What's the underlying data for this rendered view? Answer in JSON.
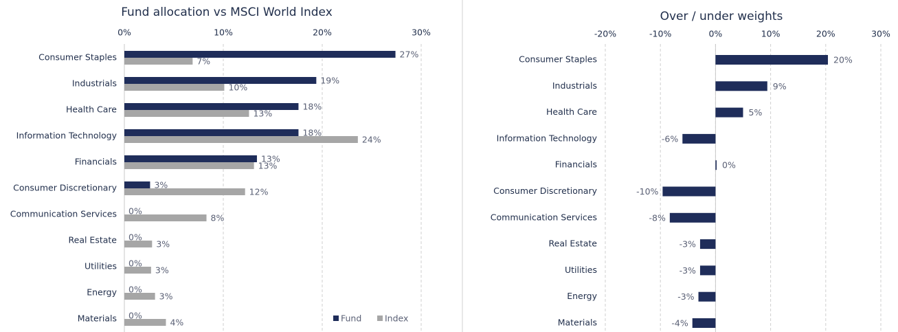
{
  "chart_data": [
    {
      "type": "bar",
      "orientation": "horizontal",
      "title": "Fund allocation vs MSCI World Index",
      "categories": [
        "Consumer Staples",
        "Industrials",
        "Health Care",
        "Information Technology",
        "Financials",
        "Consumer Discretionary",
        "Communication Services",
        "Real Estate",
        "Utilities",
        "Energy",
        "Materials"
      ],
      "series": [
        {
          "name": "Fund",
          "color": "#1f2d5a",
          "values": [
            27.4,
            19.4,
            17.6,
            17.6,
            13.4,
            2.6,
            0,
            0,
            0,
            0,
            0
          ],
          "value_labels": [
            "27%",
            "19%",
            "18%",
            "18%",
            "13%",
            "3%",
            "0%",
            "0%",
            "0%",
            "0%",
            "0%"
          ]
        },
        {
          "name": "Index",
          "color": "#a6a6a6",
          "values": [
            6.9,
            10.1,
            12.6,
            23.6,
            13.1,
            12.2,
            8.3,
            2.8,
            2.7,
            3.1,
            4.2
          ],
          "value_labels": [
            "7%",
            "10%",
            "13%",
            "24%",
            "13%",
            "12%",
            "8%",
            "3%",
            "3%",
            "3%",
            "4%"
          ]
        }
      ],
      "xlim": [
        0,
        30
      ],
      "xticks": [
        {
          "value": 0,
          "label": "0%"
        },
        {
          "value": 10,
          "label": "10%"
        },
        {
          "value": 20,
          "label": "20%"
        },
        {
          "value": 30,
          "label": "30%"
        }
      ],
      "grid": true,
      "legend": "lower right"
    },
    {
      "type": "bar",
      "orientation": "horizontal",
      "title": "Over / under weights",
      "categories": [
        "Consumer Staples",
        "Industrials",
        "Health Care",
        "Information Technology",
        "Financials",
        "Consumer Discretionary",
        "Communication Services",
        "Real Estate",
        "Utilities",
        "Energy",
        "Materials"
      ],
      "values": [
        20.4,
        9.4,
        5.0,
        -6.0,
        0.2,
        -9.6,
        -8.3,
        -2.8,
        -2.8,
        -3.1,
        -4.2
      ],
      "value_labels": [
        "20%",
        "9%",
        "5%",
        "-6%",
        "0%",
        "-10%",
        "-8%",
        "-3%",
        "-3%",
        "-3%",
        "-4%"
      ],
      "color": "#1f2d5a",
      "xlim": [
        -20,
        30
      ],
      "xticks": [
        {
          "value": -20,
          "label": "-20%"
        },
        {
          "value": -10,
          "label": "-10%"
        },
        {
          "value": 0,
          "label": "0%"
        },
        {
          "value": 10,
          "label": "10%"
        },
        {
          "value": 20,
          "label": "20%"
        },
        {
          "value": 30,
          "label": "30%"
        }
      ],
      "grid": true
    }
  ]
}
